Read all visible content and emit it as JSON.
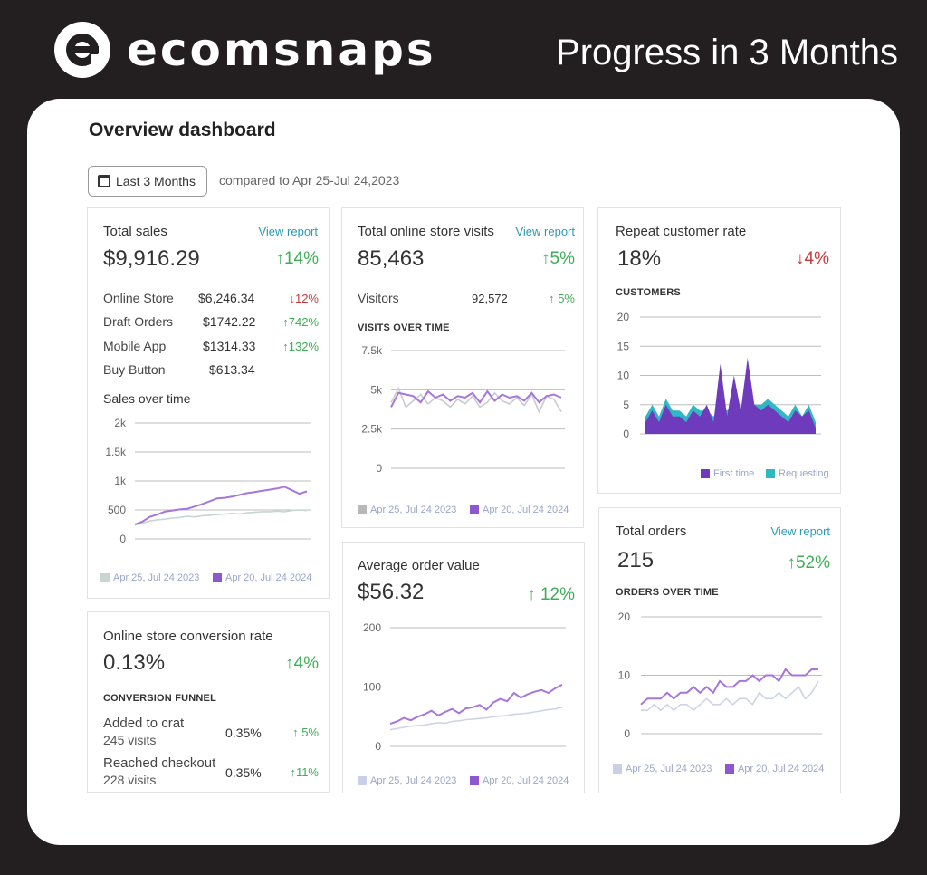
{
  "brand": {
    "name": "ecomsnaps",
    "headline": "Progress in 3 Months"
  },
  "dashboard": {
    "title": "Overview dashboard",
    "range_label": "Last 3 Months",
    "compare_text": "compared to Apr 25-Jul 24,2023"
  },
  "total_sales": {
    "title": "Total sales",
    "link": "View report",
    "value": "$9,916.29",
    "change": "↑14%",
    "rows": [
      {
        "label": "Online Store",
        "value": "$6,246.34",
        "change": "↓12%"
      },
      {
        "label": "Draft Orders",
        "value": "$1742.22",
        "change": "↑742%"
      },
      {
        "label": "Mobile App",
        "value": "$1314.33",
        "change": "↑132%"
      },
      {
        "label": "Buy Button",
        "value": "$613.34",
        "change": ""
      }
    ],
    "chart_title": "Sales over time",
    "legend": [
      "Apr 25, Jul 24 2023",
      "Apr 20, Jul 24 2024"
    ]
  },
  "conversion": {
    "title": "Online store conversion rate",
    "value": "0.13%",
    "change": "↑4%",
    "funnel_title": "CONVERSION FUNNEL",
    "rows": [
      {
        "label": "Added to crat",
        "visits": "245 visits",
        "value": "0.35%",
        "change": "↑ 5%"
      },
      {
        "label": "Reached checkout",
        "visits": "228 visits",
        "value": "0.35%",
        "change": "↑11%"
      }
    ]
  },
  "visits": {
    "title": "Total online store visits",
    "link": "View report",
    "value": "85,463",
    "change": "↑5%",
    "visitors_label": "Visitors",
    "visitors_value": "92,572",
    "visitors_change": "↑ 5%",
    "chart_title": "VISITS OVER TIME",
    "legend": [
      "Apr 25, Jul 24 2023",
      "Apr 20, Jul 24 2024"
    ]
  },
  "aov": {
    "title": "Average order value",
    "value": "$56.32",
    "change": "↑ 12%",
    "legend": [
      "Apr 25, Jul 24 2023",
      "Apr 20, Jul 24 2024"
    ]
  },
  "repeat": {
    "title": "Repeat customer rate",
    "value": "18%",
    "change": "↓4%",
    "chart_title": "CUSTOMERS",
    "legend": [
      "First time",
      "Requesting"
    ]
  },
  "orders": {
    "title": "Total orders",
    "link": "View report",
    "value": "215",
    "change": "↑52%",
    "chart_title": "ORDERS OVER TIME",
    "legend": [
      "Apr 25, Jul 24 2023",
      "Apr 20, Jul 24 2024"
    ]
  },
  "colors": {
    "purple": "#8e57cf",
    "purple_light": "#c3a2ea",
    "gray_line": "#c9ccd6",
    "first_time": "#6f3bbd",
    "requesting": "#2fb8c4",
    "up": "#3fae55",
    "down": "#c53a3a",
    "link": "#2a9bb5"
  },
  "chart_data": [
    {
      "type": "line",
      "title": "Sales over time",
      "ylim": [
        0,
        2000
      ],
      "yticks": [
        "2k",
        "1.5k",
        "1k",
        "500",
        "0"
      ],
      "series": [
        {
          "name": "Apr 25, Jul 24 2023",
          "values": [
            240,
            270,
            310,
            330,
            340,
            360,
            370,
            390,
            380,
            400,
            410,
            420,
            430,
            440,
            430,
            450,
            460,
            470,
            470,
            480,
            470,
            490,
            500,
            490
          ]
        },
        {
          "name": "Apr 20, Jul 24 2024",
          "values": [
            250,
            300,
            380,
            420,
            470,
            490,
            510,
            520,
            560,
            600,
            650,
            700,
            710,
            730,
            760,
            790,
            810,
            830,
            850,
            870,
            900,
            840,
            780,
            820
          ]
        }
      ]
    },
    {
      "type": "line",
      "title": "VISITS OVER TIME",
      "ylim": [
        0,
        7500
      ],
      "yticks": [
        "7.5k",
        "5k",
        "2.5k",
        "0"
      ],
      "series": [
        {
          "name": "Apr 25, Jul 24 2023",
          "values": [
            4200,
            5100,
            3900,
            4300,
            4700,
            4100,
            4500,
            4300,
            3900,
            4400,
            4100,
            4600,
            3900,
            4200,
            4800,
            4300,
            4100,
            4500,
            4000,
            4700,
            3600,
            4600,
            4400,
            3600
          ]
        },
        {
          "name": "Apr 20, Jul 24 2024",
          "values": [
            3900,
            4800,
            4700,
            4600,
            4200,
            4900,
            4500,
            4700,
            4300,
            4600,
            4500,
            4800,
            4200,
            4900,
            4300,
            4700,
            4500,
            4600,
            4300,
            4800,
            4200,
            4600,
            4700,
            4500
          ]
        }
      ]
    },
    {
      "type": "line",
      "title": "Average order value",
      "ylim": [
        0,
        200
      ],
      "yticks": [
        "200",
        "100",
        "0"
      ],
      "series": [
        {
          "name": "Apr 25, Jul 24 2023",
          "values": [
            28,
            30,
            32,
            34,
            35,
            36,
            38,
            40,
            39,
            42,
            43,
            45,
            46,
            47,
            48,
            50,
            51,
            52,
            54,
            55,
            56,
            58,
            60,
            62,
            63,
            66
          ]
        },
        {
          "name": "Apr 20, Jul 24 2024",
          "values": [
            38,
            42,
            48,
            44,
            50,
            54,
            60,
            52,
            58,
            63,
            56,
            64,
            66,
            70,
            62,
            74,
            80,
            76,
            90,
            82,
            88,
            92,
            95,
            90,
            98,
            104
          ]
        }
      ]
    },
    {
      "type": "area",
      "title": "CUSTOMERS",
      "ylim": [
        0,
        20
      ],
      "yticks": [
        "20",
        "15",
        "10",
        "5",
        "0"
      ],
      "series": [
        {
          "name": "First time",
          "values": [
            2,
            4,
            2,
            5,
            3,
            3,
            2,
            4,
            3,
            5,
            2,
            12,
            3,
            10,
            4,
            13,
            5,
            4,
            5,
            4,
            3,
            2,
            4,
            3,
            4,
            1
          ]
        },
        {
          "name": "Requesting",
          "values": [
            3,
            5,
            3,
            6,
            4,
            4,
            3,
            5,
            4,
            4,
            3,
            5,
            4,
            5,
            4,
            4,
            5,
            5,
            6,
            5,
            4,
            3,
            5,
            3,
            5,
            2
          ]
        }
      ]
    },
    {
      "type": "line",
      "title": "ORDERS OVER TIME",
      "ylim": [
        0,
        20
      ],
      "yticks": [
        "20",
        "10",
        "0"
      ],
      "series": [
        {
          "name": "Apr 25, Jul 24 2023",
          "values": [
            4,
            4,
            5,
            4,
            5,
            4,
            5,
            5,
            4,
            5,
            6,
            5,
            5,
            6,
            5,
            6,
            6,
            5,
            7,
            6,
            6,
            7,
            6,
            7,
            8,
            6,
            7,
            9
          ]
        },
        {
          "name": "Apr 20, Jul 24 2024",
          "values": [
            5,
            6,
            6,
            6,
            7,
            6,
            7,
            7,
            8,
            7,
            8,
            7,
            9,
            8,
            8,
            9,
            9,
            10,
            9,
            10,
            10,
            9,
            11,
            10,
            10,
            10,
            11,
            11
          ]
        }
      ]
    }
  ]
}
